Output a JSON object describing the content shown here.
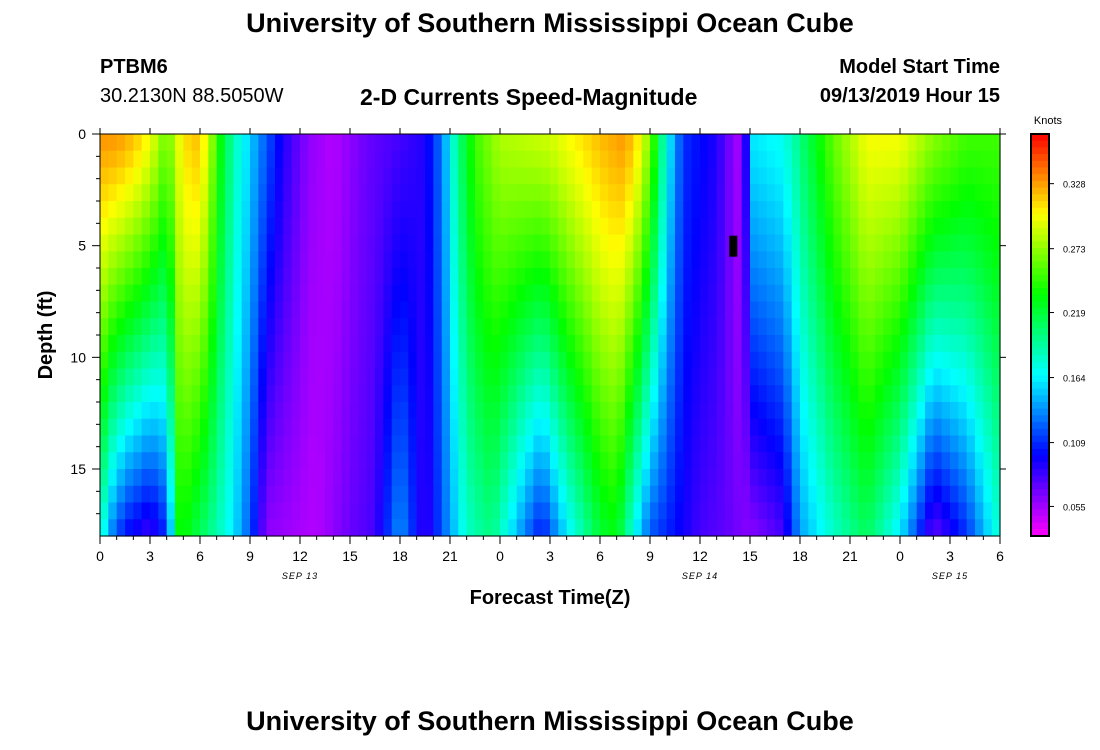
{
  "header": {
    "title_top": "University of Southern Mississippi Ocean Cube",
    "title_bottom": "University of Southern Mississippi Ocean Cube",
    "station_id": "PTBM6",
    "coordinates": "30.2130N 88.5050W",
    "subtitle": "2-D Currents Speed-Magnitude",
    "model_start_label": "Model Start Time",
    "model_start_value": "09/13/2019 Hour 15"
  },
  "chart_data": {
    "type": "heatmap",
    "title": "2-D Currents Speed-Magnitude",
    "xlabel": "Forecast Time(Z)",
    "ylabel": "Depth (ft)",
    "x_range_hours": [
      0,
      54
    ],
    "ylim": [
      0,
      18
    ],
    "y_ticks": [
      0,
      5,
      10,
      15
    ],
    "x_tick_labels": [
      "0",
      "3",
      "6",
      "9",
      "12",
      "15",
      "18",
      "21",
      "0",
      "3",
      "6",
      "9",
      "12",
      "15",
      "18",
      "21",
      "0",
      "3",
      "6"
    ],
    "date_labels": [
      {
        "label": "SEP 13",
        "hour": 12
      },
      {
        "label": "SEP 14",
        "hour": 36
      },
      {
        "label": "SEP 15",
        "hour": 51
      }
    ],
    "colorbar": {
      "title": "Knots",
      "min": 0.03,
      "max": 0.37,
      "tick_values": [
        0.055,
        0.109,
        0.164,
        0.219,
        0.273,
        0.328
      ],
      "tick_labels": [
        "0.055",
        "0.109",
        "0.164",
        "0.219",
        "0.273",
        "0.328"
      ]
    },
    "surface_speed_by_hour": [
      [
        0,
        0.33
      ],
      [
        1,
        0.33
      ],
      [
        2,
        0.32
      ],
      [
        3,
        0.3
      ],
      [
        4,
        0.26
      ],
      [
        5,
        0.31
      ],
      [
        6,
        0.32
      ],
      [
        6.6,
        0.28
      ],
      [
        7.4,
        0.22
      ],
      [
        8.2,
        0.18
      ],
      [
        9.4,
        0.14
      ],
      [
        11,
        0.09
      ],
      [
        12.5,
        0.06
      ],
      [
        14,
        0.05
      ],
      [
        16,
        0.07
      ],
      [
        18,
        0.08
      ],
      [
        19.5,
        0.09
      ],
      [
        20.5,
        0.13
      ],
      [
        21.5,
        0.2
      ],
      [
        22.5,
        0.25
      ],
      [
        24,
        0.28
      ],
      [
        27,
        0.29
      ],
      [
        30,
        0.32
      ],
      [
        31.5,
        0.33
      ],
      [
        32.5,
        0.3
      ],
      [
        33.3,
        0.24
      ],
      [
        34,
        0.17
      ],
      [
        35,
        0.11
      ],
      [
        37,
        0.09
      ],
      [
        38,
        0.06
      ],
      [
        38.6,
        0.05
      ],
      [
        39,
        0.16
      ],
      [
        41,
        0.17
      ],
      [
        42,
        0.2
      ],
      [
        44,
        0.26
      ],
      [
        46,
        0.3
      ],
      [
        48,
        0.3
      ],
      [
        50,
        0.27
      ],
      [
        52,
        0.25
      ],
      [
        54,
        0.25
      ]
    ],
    "bottom_speed_by_hour": [
      [
        0,
        0.19
      ],
      [
        0.5,
        0.14
      ],
      [
        1.5,
        0.1
      ],
      [
        3,
        0.08
      ],
      [
        4,
        0.11
      ],
      [
        4.8,
        0.24
      ],
      [
        5.6,
        0.22
      ],
      [
        6.5,
        0.2
      ],
      [
        8,
        0.16
      ],
      [
        9,
        0.12
      ],
      [
        10,
        0.06
      ],
      [
        13,
        0.05
      ],
      [
        15,
        0.07
      ],
      [
        16.5,
        0.08
      ],
      [
        18,
        0.14
      ],
      [
        19.5,
        0.08
      ],
      [
        21,
        0.14
      ],
      [
        22,
        0.18
      ],
      [
        23.5,
        0.2
      ],
      [
        25.5,
        0.13
      ],
      [
        26.5,
        0.1
      ],
      [
        28,
        0.16
      ],
      [
        30,
        0.22
      ],
      [
        31,
        0.23
      ],
      [
        32,
        0.17
      ],
      [
        33,
        0.12
      ],
      [
        36,
        0.08
      ],
      [
        38,
        0.07
      ],
      [
        39,
        0.06
      ],
      [
        41,
        0.08
      ],
      [
        42,
        0.14
      ],
      [
        44,
        0.18
      ],
      [
        46,
        0.21
      ],
      [
        48,
        0.16
      ],
      [
        50,
        0.07
      ],
      [
        52,
        0.11
      ],
      [
        54,
        0.18
      ]
    ],
    "missing_cell": {
      "hour": 38,
      "depth_ft": 5
    }
  }
}
